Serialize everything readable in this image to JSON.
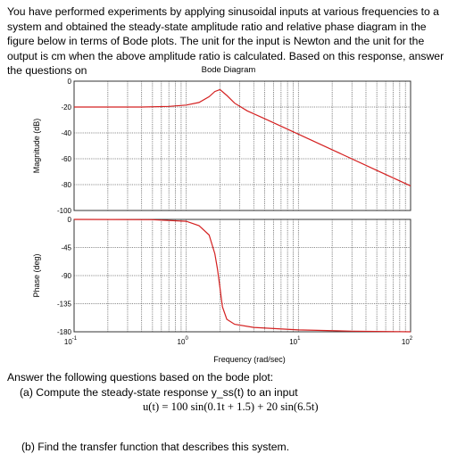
{
  "problem": {
    "intro": "You have performed experiments by applying sinusoidal inputs at various frequencies to a system and obtained the steady-state amplitude ratio and relative phase diagram in the figure below in terms of Bode plots. The unit for the input is Newton and the unit for the output is cm when the above amplitude ratio is calculated. Based on this response, answer the questions on",
    "questions_intro": "Answer the following questions based on the bode plot:",
    "question_a": "(a) Compute the steady-state response y_ss(t) to an input",
    "question_a_equation": "u(t) = 100 sin(0.1t + 1.5) + 20 sin(6.5t)",
    "question_b": "(b) Find the transfer function that describes this system."
  },
  "chart_data": [
    {
      "type": "line",
      "title": "Bode Diagram",
      "xlabel": "",
      "ylabel": "Magnitude (dB)",
      "xscale": "log",
      "xlim": [
        0.1,
        100
      ],
      "ylim": [
        -100,
        0
      ],
      "yticks": [
        0,
        -20,
        -40,
        -60,
        -80,
        -100
      ],
      "grid": true,
      "line_color": "#d42020",
      "series": [
        {
          "x": [
            0.1,
            0.2,
            0.4,
            0.7,
            1.0,
            1.3,
            1.6,
            1.8,
            2.0,
            2.3,
            2.7,
            3.5,
            5,
            10,
            20,
            50,
            100
          ],
          "y": [
            -20,
            -20,
            -20,
            -19.5,
            -18.5,
            -16.5,
            -12,
            -8,
            -6.5,
            -11,
            -17,
            -23,
            -29,
            -41,
            -53,
            -69,
            -81
          ]
        }
      ]
    },
    {
      "type": "line",
      "xlabel": "Frequency  (rad/sec)",
      "ylabel": "Phase (deg)",
      "xscale": "log",
      "xlim": [
        0.1,
        100
      ],
      "ylim": [
        -180,
        0
      ],
      "yticks": [
        0,
        -45,
        -90,
        -135,
        -180
      ],
      "xticks": [
        "10^-1",
        "10^0",
        "10^1",
        "10^2"
      ],
      "grid": true,
      "line_color": "#d42020",
      "series": [
        {
          "x": [
            0.1,
            0.5,
            1.0,
            1.3,
            1.6,
            1.8,
            1.9,
            1.95,
            2.0,
            2.05,
            2.1,
            2.3,
            2.7,
            4,
            10,
            30,
            100
          ],
          "y": [
            0,
            -0.5,
            -3,
            -10,
            -25,
            -55,
            -80,
            -95,
            -110,
            -125,
            -140,
            -160,
            -168,
            -173,
            -177,
            -179,
            -180
          ]
        }
      ]
    }
  ]
}
